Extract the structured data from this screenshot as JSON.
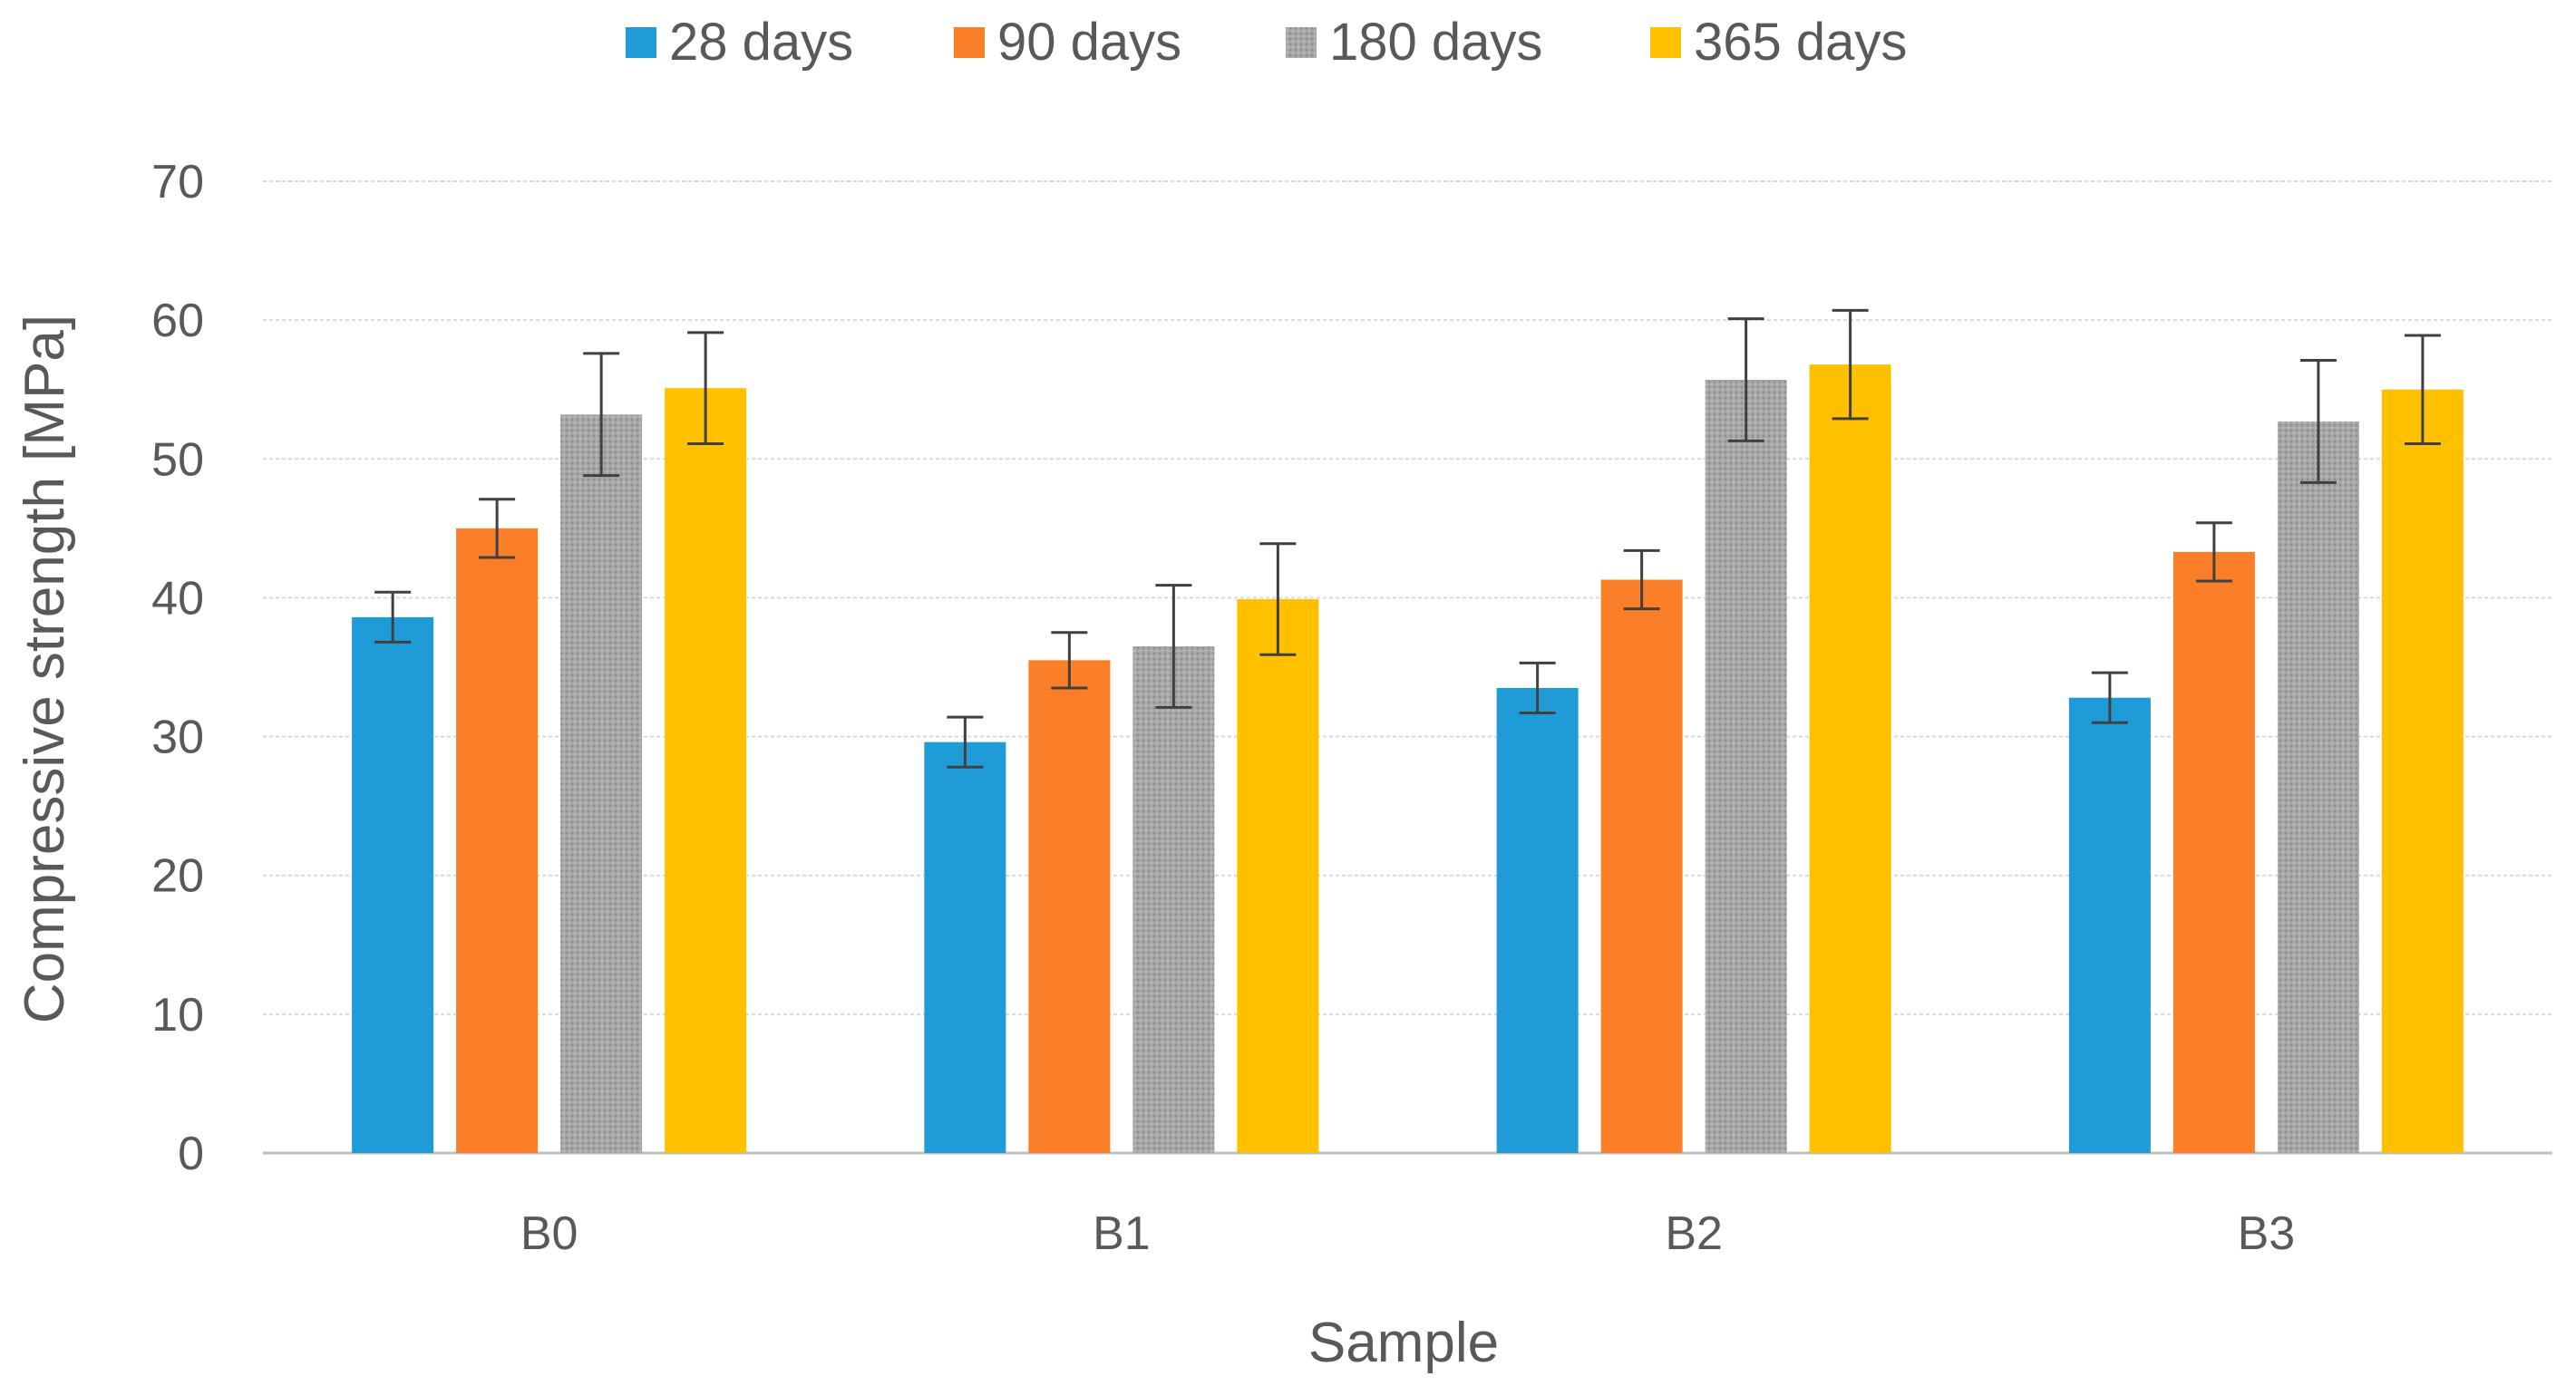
{
  "chart_data": {
    "type": "bar",
    "title": "",
    "xlabel": "Sample",
    "ylabel": "Compressive strength [MPa]",
    "ylim": [
      0,
      70
    ],
    "yticks": [
      0,
      10,
      20,
      30,
      40,
      50,
      60,
      70
    ],
    "grid": true,
    "legend_position": "top-center",
    "categories": [
      "B0",
      "B1",
      "B2",
      "B3"
    ],
    "series": [
      {
        "name": "28 days",
        "color": "#1F9BD7",
        "values": [
          38.6,
          29.6,
          33.5,
          32.8
        ],
        "errors": [
          1.8,
          1.8,
          1.8,
          1.8
        ]
      },
      {
        "name": "90 days",
        "color": "#FB7E28",
        "values": [
          45.0,
          35.5,
          41.3,
          43.3
        ],
        "errors": [
          2.1,
          2.0,
          2.1,
          2.1
        ]
      },
      {
        "name": "180 days",
        "color": "#A6A6A6",
        "values": [
          53.2,
          36.5,
          55.7,
          52.7
        ],
        "errors": [
          4.4,
          4.4,
          4.4,
          4.4
        ]
      },
      {
        "name": "365 days",
        "color": "#FFC000",
        "values": [
          55.1,
          39.9,
          56.8,
          55.0
        ],
        "errors": [
          4.0,
          4.0,
          3.9,
          3.9
        ]
      }
    ]
  }
}
